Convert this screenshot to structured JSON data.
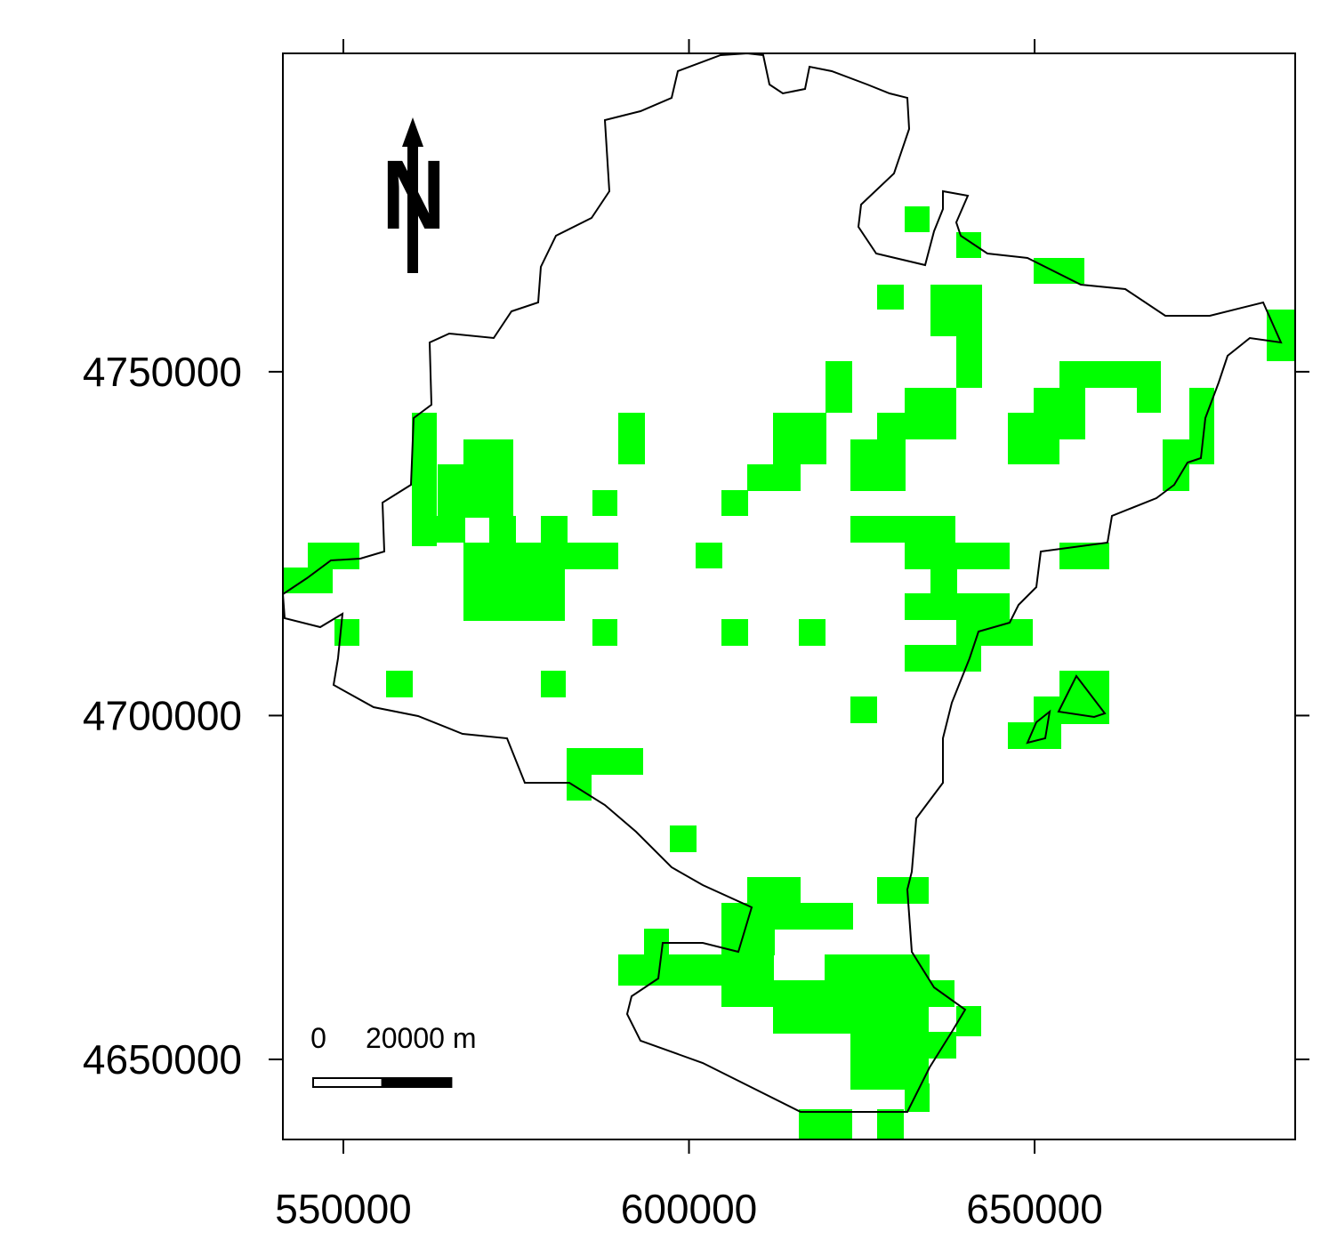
{
  "map": {
    "xlim": [
      541250,
      687700
    ],
    "ylim": [
      4638350,
      4796300
    ],
    "xticks": [
      550000,
      600000,
      650000
    ],
    "yticks": [
      4650000,
      4700000,
      4750000
    ],
    "north_label": "N",
    "scale_bar": {
      "start_label": "0",
      "end_label": "20000 m",
      "length": 20000
    }
  }
}
